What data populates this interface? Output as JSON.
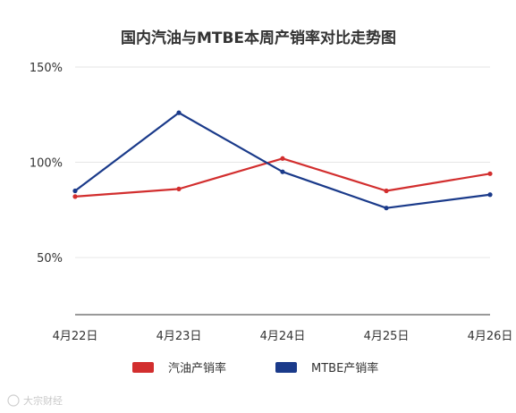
{
  "chart_data": {
    "type": "line",
    "title": "国内汽油与MTBE本周产销率对比走势图",
    "categories": [
      "4月22日",
      "4月23日",
      "4月24日",
      "4月25日",
      "4月26日"
    ],
    "yticks": [
      "50%",
      "100%",
      "150%"
    ],
    "yticks_values": [
      50,
      100,
      150
    ],
    "ylim": [
      20,
      150
    ],
    "grid": true,
    "legend_position": "bottom",
    "series": [
      {
        "name": "汽油产销率",
        "color": "#d22e2e",
        "values": [
          82,
          86,
          102,
          85,
          94
        ]
      },
      {
        "name": "MTBE产销率",
        "color": "#1a3a8a",
        "values": [
          85,
          126,
          95,
          76,
          83
        ]
      }
    ]
  },
  "watermark": {
    "text": "大宗财经"
  }
}
